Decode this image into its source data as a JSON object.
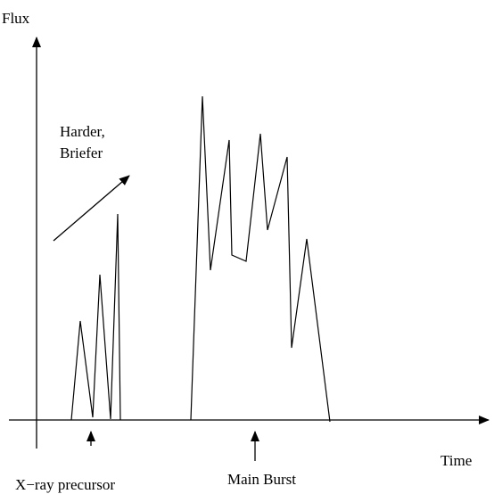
{
  "axes": {
    "y_label": "Flux",
    "x_label": "Time"
  },
  "annotations": {
    "trend_line1": "Harder,",
    "trend_line2": "Briefer",
    "precursor": "X−ray precursor",
    "main_burst": "Main Burst"
  }
}
